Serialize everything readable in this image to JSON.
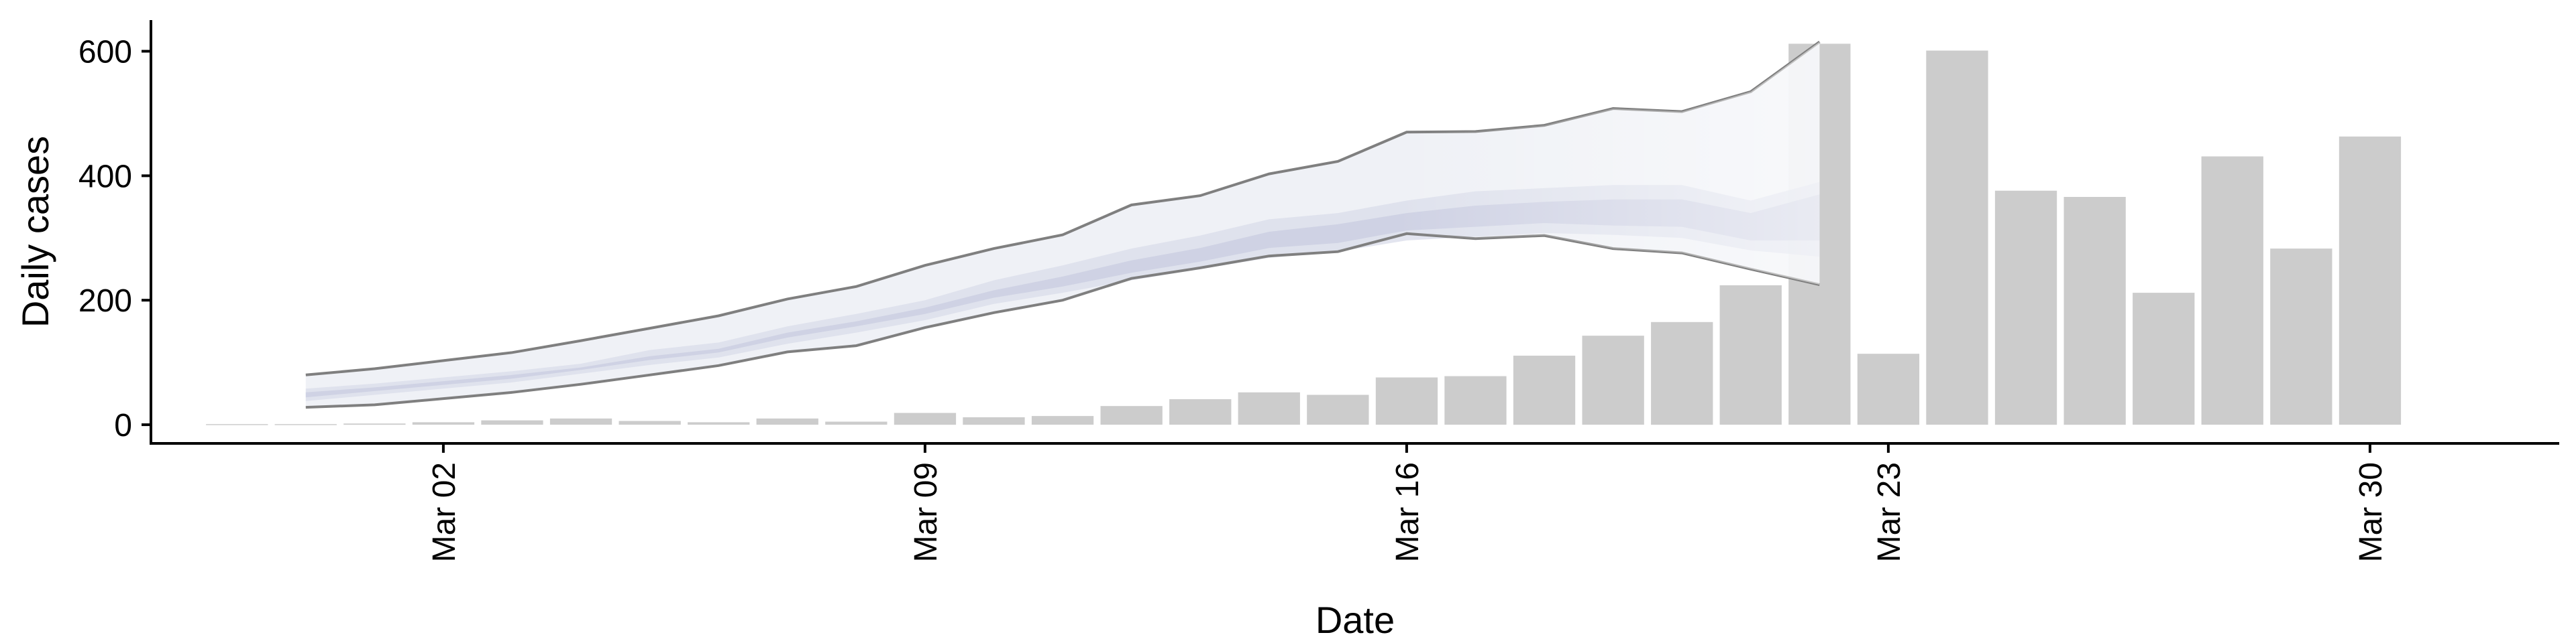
{
  "chart_data": {
    "type": "bar",
    "title": "",
    "xlabel": "Date",
    "ylabel": "Daily cases",
    "x_start": "2020-02-28",
    "x_end": "2020-03-31",
    "x_ticks": [
      {
        "date": "2020-03-02",
        "label": "Mar 02"
      },
      {
        "date": "2020-03-09",
        "label": "Mar 09"
      },
      {
        "date": "2020-03-16",
        "label": "Mar 16"
      },
      {
        "date": "2020-03-23",
        "label": "Mar 23"
      },
      {
        "date": "2020-03-30",
        "label": "Mar 30"
      }
    ],
    "ylim": [
      -30,
      650
    ],
    "y_ticks": [
      0,
      200,
      400,
      600
    ],
    "grid": false,
    "bars": {
      "color": "#cccccc",
      "dates": [
        "2020-02-28",
        "2020-02-29",
        "2020-03-01",
        "2020-03-02",
        "2020-03-03",
        "2020-03-04",
        "2020-03-05",
        "2020-03-06",
        "2020-03-07",
        "2020-03-08",
        "2020-03-09",
        "2020-03-10",
        "2020-03-11",
        "2020-03-12",
        "2020-03-13",
        "2020-03-14",
        "2020-03-15",
        "2020-03-16",
        "2020-03-17",
        "2020-03-18",
        "2020-03-19",
        "2020-03-20",
        "2020-03-21",
        "2020-03-22",
        "2020-03-23",
        "2020-03-24",
        "2020-03-25",
        "2020-03-26",
        "2020-03-27",
        "2020-03-28",
        "2020-03-29",
        "2020-03-30",
        "2020-03-31"
      ],
      "values": [
        1,
        1,
        2,
        4,
        7,
        10,
        6,
        4,
        10,
        5,
        19,
        12,
        14,
        30,
        41,
        52,
        48,
        76,
        78,
        111,
        143,
        165,
        224,
        612,
        114,
        601,
        376,
        366,
        212,
        431,
        283,
        463,
        0
      ]
    },
    "estimate": {
      "dates": [
        "2020-02-29",
        "2020-03-01",
        "2020-03-02",
        "2020-03-03",
        "2020-03-04",
        "2020-03-05",
        "2020-03-06",
        "2020-03-07",
        "2020-03-08",
        "2020-03-09",
        "2020-03-10",
        "2020-03-11",
        "2020-03-12",
        "2020-03-13",
        "2020-03-14",
        "2020-03-15",
        "2020-03-16",
        "2020-03-17",
        "2020-03-18",
        "2020-03-19",
        "2020-03-20",
        "2020-03-21",
        "2020-03-22"
      ],
      "outer_upper": [
        80,
        90,
        103,
        116,
        135,
        155,
        175,
        202,
        222,
        256,
        283,
        305,
        353,
        368,
        403,
        423,
        470,
        471,
        481,
        508,
        503,
        535,
        615
      ],
      "outer_lower": [
        28,
        32,
        42,
        52,
        65,
        80,
        95,
        117,
        127,
        156,
        180,
        200,
        235,
        252,
        271,
        278,
        307,
        299,
        304,
        283,
        276,
        250,
        225
      ],
      "inner_upper": [
        58,
        66,
        76,
        86,
        98,
        120,
        132,
        158,
        178,
        200,
        232,
        256,
        283,
        304,
        330,
        340,
        360,
        375,
        380,
        385,
        385,
        360,
        390
      ],
      "inner_lower": [
        38,
        48,
        58,
        68,
        82,
        96,
        108,
        130,
        148,
        168,
        194,
        212,
        232,
        250,
        268,
        278,
        296,
        302,
        308,
        305,
        300,
        280,
        270
      ],
      "core_upper": [
        52,
        60,
        70,
        80,
        92,
        110,
        122,
        148,
        166,
        188,
        216,
        238,
        264,
        284,
        310,
        322,
        340,
        352,
        358,
        362,
        362,
        340,
        370
      ],
      "core_lower": [
        44,
        54,
        64,
        74,
        88,
        104,
        116,
        140,
        158,
        178,
        204,
        222,
        244,
        262,
        284,
        292,
        312,
        318,
        324,
        320,
        318,
        296,
        296
      ],
      "outer_fill": "#eceef5",
      "inner_fill": "#d9dcea",
      "core_fill": "#c7cce0",
      "line_color": "#7f7f7f"
    }
  }
}
